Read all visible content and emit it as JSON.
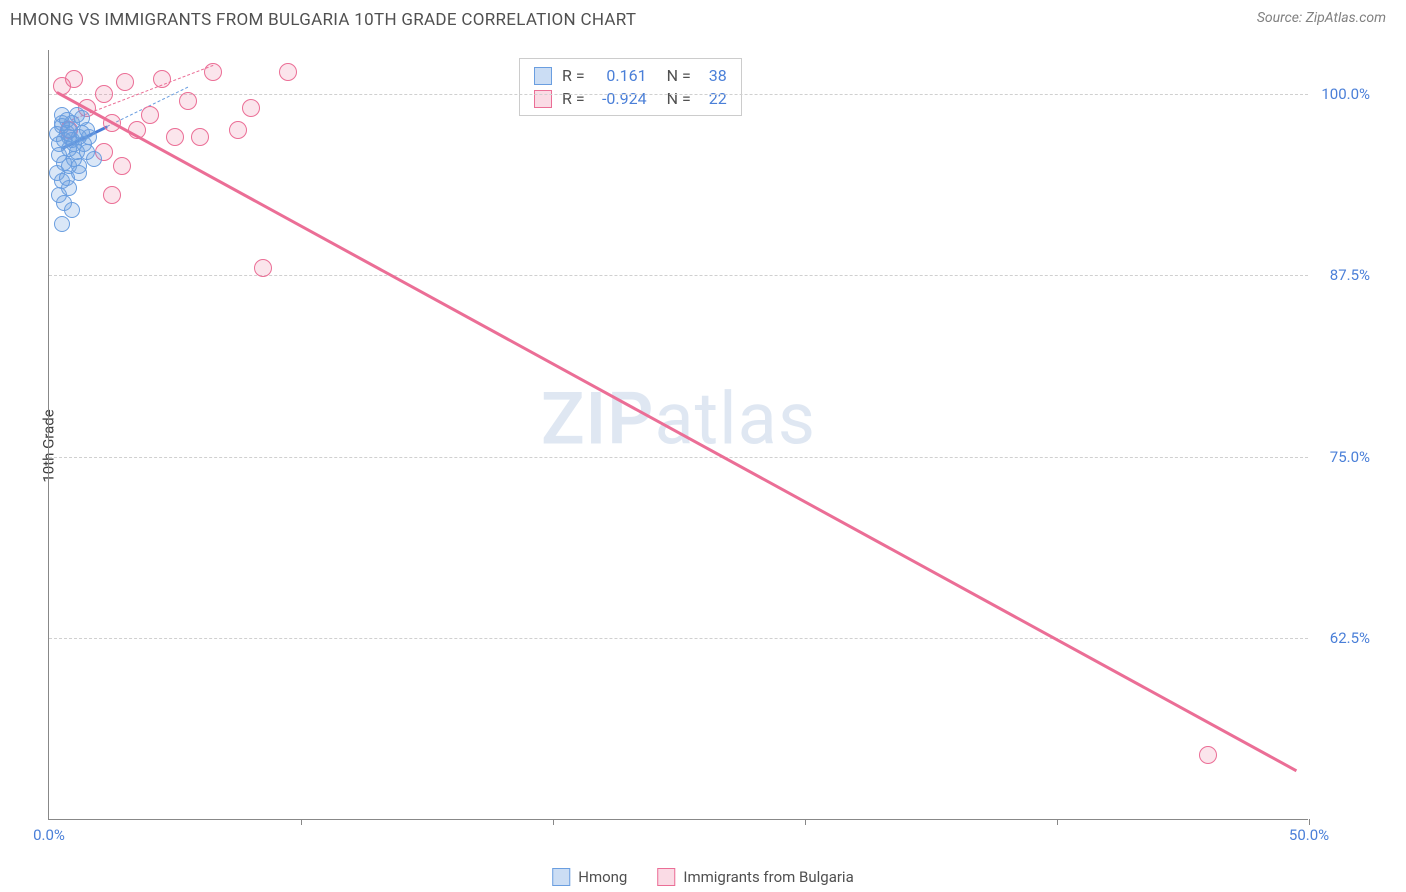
{
  "title": "HMONG VS IMMIGRANTS FROM BULGARIA 10TH GRADE CORRELATION CHART",
  "source": "Source: ZipAtlas.com",
  "y_axis_label": "10th Grade",
  "watermark": {
    "zip": "ZIP",
    "atlas": "atlas"
  },
  "chart": {
    "type": "scatter",
    "xlim": [
      0,
      50
    ],
    "ylim": [
      50,
      103
    ],
    "x_ticks": [
      0,
      10,
      20,
      30,
      40,
      50
    ],
    "x_tick_labels": {
      "0": "0.0%",
      "50": "50.0%"
    },
    "y_ticks": [
      62.5,
      75,
      87.5,
      100
    ],
    "y_tick_labels": {
      "62.5": "62.5%",
      "75": "75.0%",
      "87.5": "87.5%",
      "100": "100.0%"
    },
    "background_color": "#ffffff",
    "grid_color": "#d0d0d0",
    "axis_color": "#888888",
    "series": {
      "hmong": {
        "label": "Hmong",
        "color": "#6a9ee0",
        "fill": "rgba(106,158,224,0.25)",
        "r_label": "R =",
        "r_value": "0.161",
        "n_label": "N =",
        "n_value": "38",
        "points": [
          [
            0.3,
            97.2
          ],
          [
            0.5,
            97.8
          ],
          [
            0.8,
            97.5
          ],
          [
            1.0,
            96.5
          ],
          [
            0.4,
            95.8
          ],
          [
            0.8,
            96.2
          ],
          [
            1.2,
            97.0
          ],
          [
            0.5,
            98.5
          ],
          [
            0.9,
            98.0
          ],
          [
            1.3,
            98.3
          ],
          [
            0.6,
            96.8
          ],
          [
            1.1,
            96.0
          ],
          [
            0.7,
            97.3
          ],
          [
            1.5,
            97.5
          ],
          [
            0.3,
            94.5
          ],
          [
            0.5,
            94.0
          ],
          [
            0.4,
            93.0
          ],
          [
            0.8,
            93.5
          ],
          [
            0.6,
            92.5
          ],
          [
            0.9,
            92.0
          ],
          [
            0.5,
            91.0
          ],
          [
            0.8,
            95.0
          ],
          [
            1.0,
            95.5
          ],
          [
            1.2,
            95.0
          ],
          [
            0.7,
            94.2
          ],
          [
            1.4,
            96.5
          ],
          [
            1.6,
            97.0
          ],
          [
            0.5,
            98.0
          ],
          [
            1.8,
            95.5
          ],
          [
            0.4,
            96.5
          ],
          [
            1.1,
            98.5
          ],
          [
            0.9,
            96.8
          ],
          [
            1.3,
            97.3
          ],
          [
            0.6,
            95.2
          ],
          [
            1.5,
            96.0
          ],
          [
            0.7,
            98.2
          ],
          [
            1.2,
            94.5
          ],
          [
            0.8,
            97.0
          ]
        ],
        "trend": {
          "x1": 0.5,
          "y1": 96.3,
          "x2": 2.3,
          "y2": 97.8
        },
        "dash": {
          "x1": 2.3,
          "y1": 97.8,
          "x2": 5.5,
          "y2": 100.5,
          "color": "#6a9ee0"
        }
      },
      "bulgaria": {
        "label": "Immigrants from Bulgaria",
        "color": "#eb6e96",
        "fill": "rgba(235,110,150,0.18)",
        "r_label": "R =",
        "r_value": "-0.924",
        "n_label": "N =",
        "n_value": "22",
        "points": [
          [
            0.5,
            100.5
          ],
          [
            1.0,
            101.0
          ],
          [
            1.5,
            99.0
          ],
          [
            2.2,
            100.0
          ],
          [
            2.5,
            98.0
          ],
          [
            3.0,
            100.8
          ],
          [
            3.5,
            97.5
          ],
          [
            4.0,
            98.5
          ],
          [
            4.5,
            101.0
          ],
          [
            5.0,
            97.0
          ],
          [
            5.5,
            99.5
          ],
          [
            6.0,
            97.0
          ],
          [
            6.5,
            101.5
          ],
          [
            7.5,
            97.5
          ],
          [
            8.0,
            99.0
          ],
          [
            9.5,
            101.5
          ],
          [
            2.9,
            95.0
          ],
          [
            2.2,
            96.0
          ],
          [
            2.5,
            93.0
          ],
          [
            8.5,
            88.0
          ],
          [
            46.0,
            54.5
          ],
          [
            0.8,
            97.5
          ]
        ],
        "trend": {
          "x1": 0.3,
          "y1": 100.2,
          "x2": 49.5,
          "y2": 53.5
        },
        "dash": {
          "x1": 0.5,
          "y1": 98.0,
          "x2": 6.5,
          "y2": 102.0,
          "color": "#eb6e96"
        }
      }
    }
  }
}
